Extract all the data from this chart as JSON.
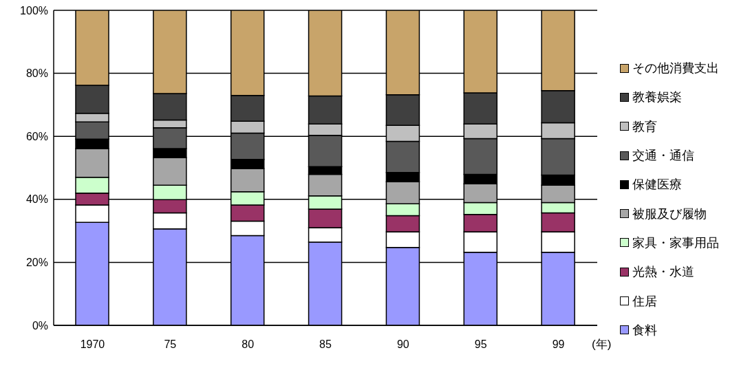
{
  "chart_data": {
    "type": "bar",
    "stacked": true,
    "xlabel": "(年)",
    "categories": [
      "1970",
      "75",
      "80",
      "85",
      "90",
      "95",
      "99"
    ],
    "series": [
      {
        "name": "食料",
        "color": "#9999ff",
        "values": [
          32.7,
          30.6,
          28.5,
          26.4,
          24.7,
          23.2,
          23.2
        ]
      },
      {
        "name": "住居",
        "color": "#ffffff",
        "values": [
          5.5,
          5.1,
          4.6,
          4.6,
          5.0,
          6.5,
          6.5
        ]
      },
      {
        "name": "光熱・水道",
        "color": "#993366",
        "values": [
          3.8,
          4.2,
          5.1,
          5.9,
          5.1,
          5.5,
          6.0
        ]
      },
      {
        "name": "家具・家事用品",
        "color": "#ccffcc",
        "values": [
          5.0,
          4.6,
          4.2,
          4.2,
          3.8,
          3.8,
          3.3
        ]
      },
      {
        "name": "被服及び履物",
        "color": "#a6a6a6",
        "values": [
          9.1,
          8.7,
          7.4,
          6.8,
          7.0,
          5.9,
          5.5
        ]
      },
      {
        "name": "保健医療",
        "color": "#000000",
        "values": [
          3.0,
          2.9,
          2.9,
          2.5,
          2.9,
          3.0,
          3.2
        ]
      },
      {
        "name": "交通・通信",
        "color": "#595959",
        "values": [
          5.5,
          6.6,
          8.3,
          9.9,
          9.9,
          11.4,
          11.6
        ]
      },
      {
        "name": "教育",
        "color": "#bfbfbf",
        "values": [
          2.7,
          2.5,
          3.8,
          3.6,
          5.1,
          4.6,
          5.0
        ]
      },
      {
        "name": "教養娯楽",
        "color": "#404040",
        "values": [
          8.9,
          8.4,
          8.2,
          8.9,
          9.7,
          9.9,
          10.2
        ]
      },
      {
        "name": "その他消費支出",
        "color": "#c8a46a",
        "values": [
          23.8,
          26.4,
          27.0,
          27.2,
          26.8,
          26.2,
          25.5
        ]
      }
    ],
    "ylim": [
      0,
      100
    ],
    "yticks": [
      {
        "value": 0,
        "label": "0%"
      },
      {
        "value": 20,
        "label": "20%"
      },
      {
        "value": 40,
        "label": "40%"
      },
      {
        "value": 60,
        "label": "60%"
      },
      {
        "value": 80,
        "label": "80%"
      },
      {
        "value": 100,
        "label": "100%"
      }
    ],
    "grid": "y",
    "legend": "right"
  }
}
